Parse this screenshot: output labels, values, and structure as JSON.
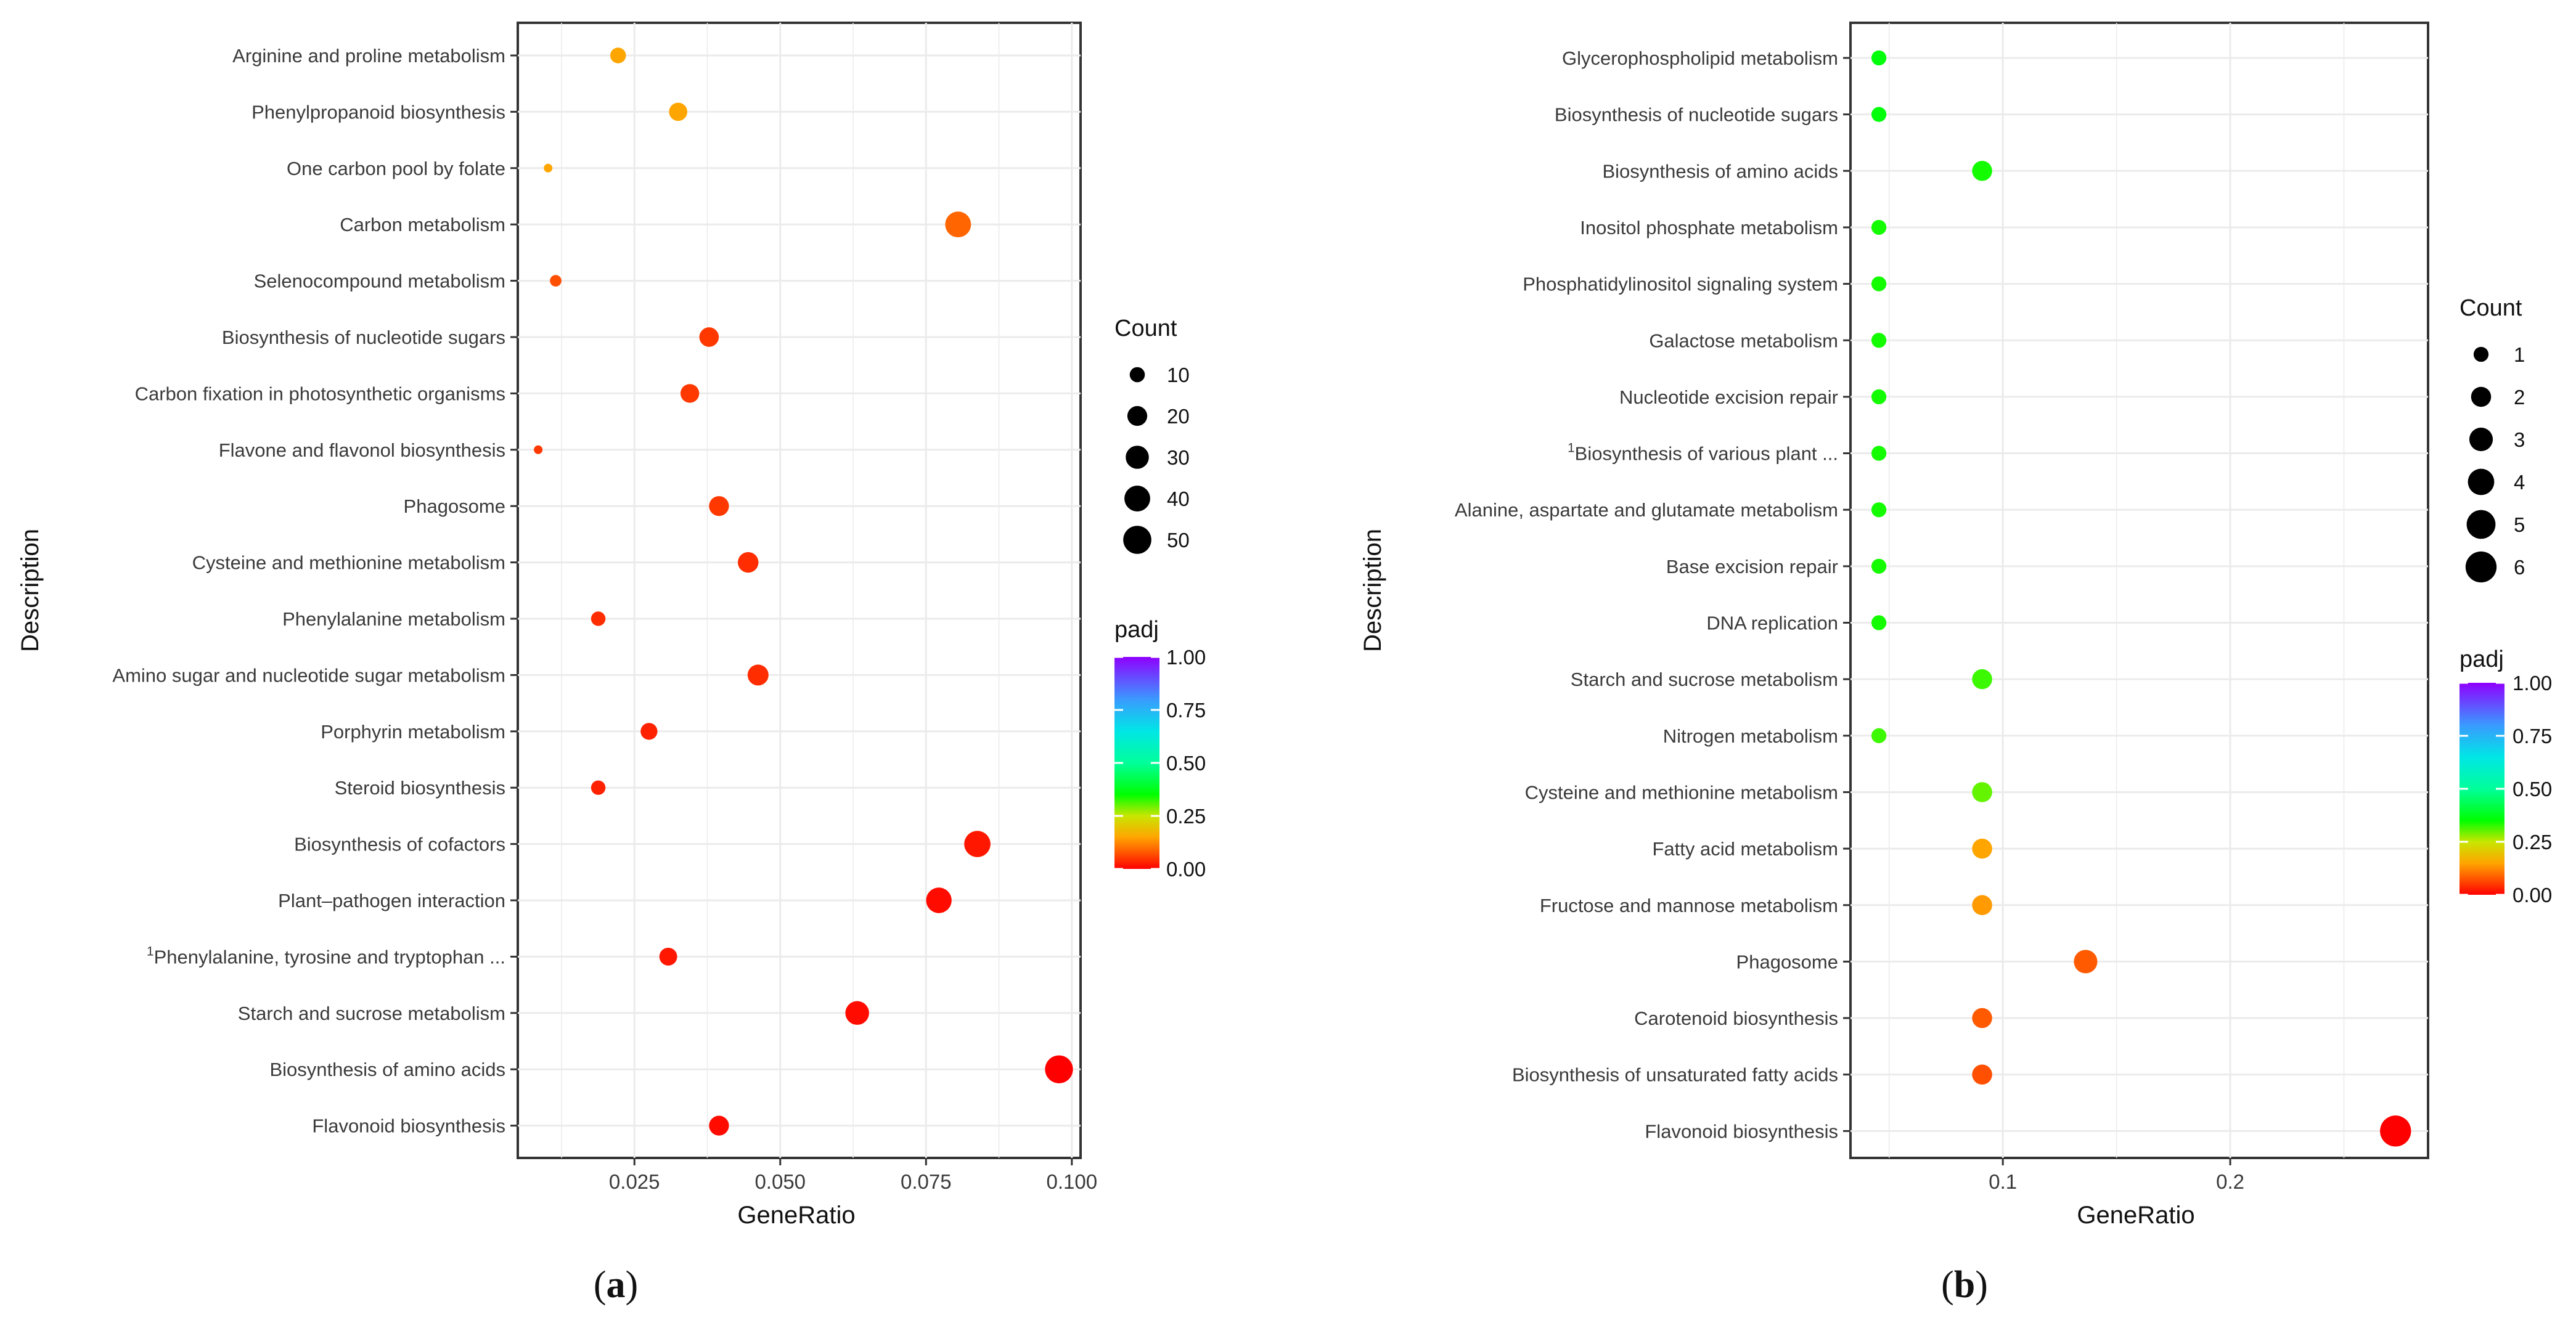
{
  "chart_data": [
    {
      "type": "scatter",
      "panel": "a",
      "caption_open": "(",
      "caption_letter": "a",
      "caption_close": ")",
      "xlabel": "GeneRatio",
      "ylabel": "Description",
      "xlim": [
        0.005,
        0.1015
      ],
      "x_ticks": [
        0.025,
        0.05,
        0.075,
        0.1
      ],
      "x_tick_labels": [
        "0.025",
        "0.050",
        "0.075",
        "0.100"
      ],
      "legend_placement": "right",
      "size_legend": {
        "title": "Count",
        "values": [
          10,
          20,
          30,
          40,
          50
        ],
        "labels": [
          "10",
          "20",
          "30",
          "40",
          "50"
        ],
        "size_max": 70
      },
      "color_legend": {
        "title": "padj",
        "ticks": [
          1.0,
          0.75,
          0.5,
          0.25,
          0.0
        ],
        "labels": [
          "1.00",
          "0.75",
          "0.50",
          "0.25",
          "0.00"
        ]
      },
      "points": [
        {
          "label": "Arginine and proline metabolism",
          "x": 0.0222,
          "count": 11,
          "padj": 0.15
        },
        {
          "label": "Phenylpropanoid biosynthesis",
          "x": 0.0325,
          "count": 16,
          "padj": 0.15
        },
        {
          "label": "One carbon pool by folate",
          "x": 0.0102,
          "count": 5,
          "padj": 0.15
        },
        {
          "label": "Carbon metabolism",
          "x": 0.0805,
          "count": 40,
          "padj": 0.09
        },
        {
          "label": "Selenocompound metabolism",
          "x": 0.0115,
          "count": 6,
          "padj": 0.07
        },
        {
          "label": "Biosynthesis of nucleotide sugars",
          "x": 0.0378,
          "count": 19,
          "padj": 0.05
        },
        {
          "label": "Carbon fixation in photosynthetic organisms",
          "x": 0.0345,
          "count": 17,
          "padj": 0.05
        },
        {
          "label": "Flavone and flavonol biosynthesis",
          "x": 0.0085,
          "count": 4,
          "padj": 0.05
        },
        {
          "label": "Phagosome",
          "x": 0.0395,
          "count": 20,
          "padj": 0.05
        },
        {
          "label": "Cysteine and methionine metabolism",
          "x": 0.0445,
          "count": 22,
          "padj": 0.04
        },
        {
          "label": "Phenylalanine metabolism",
          "x": 0.0188,
          "count": 9,
          "padj": 0.04
        },
        {
          "label": "Amino sugar and nucleotide sugar metabolism",
          "x": 0.0462,
          "count": 23,
          "padj": 0.04
        },
        {
          "label": "Porphyrin metabolism",
          "x": 0.0275,
          "count": 13,
          "padj": 0.03
        },
        {
          "label": "Steroid biosynthesis",
          "x": 0.0188,
          "count": 9,
          "padj": 0.03
        },
        {
          "label": "Biosynthesis of cofactors",
          "x": 0.0838,
          "count": 42,
          "padj": 0.02
        },
        {
          "label": "Plant–pathogen interaction",
          "x": 0.0772,
          "count": 39,
          "padj": 0.01
        },
        {
          "label": "Phenylalanine, tyrosine and tryptophan ...",
          "superscript": "1",
          "x": 0.0308,
          "count": 15,
          "padj": 0.02
        },
        {
          "label": "Starch and sucrose metabolism",
          "x": 0.0632,
          "count": 32,
          "padj": 0.01
        },
        {
          "label": "Biosynthesis of amino acids",
          "x": 0.0978,
          "count": 49,
          "padj": 0.0
        },
        {
          "label": "Flavonoid biosynthesis",
          "x": 0.0395,
          "count": 20,
          "padj": 0.01
        }
      ]
    },
    {
      "type": "scatter",
      "panel": "b",
      "caption_open": "(",
      "caption_letter": "b",
      "caption_close": ")",
      "xlabel": "GeneRatio",
      "ylabel": "Description",
      "xlim": [
        0.033,
        0.287
      ],
      "x_ticks": [
        0.1,
        0.2
      ],
      "x_tick_labels": [
        "0.1",
        "0.2"
      ],
      "legend_placement": "right",
      "size_legend": {
        "title": "Count",
        "values": [
          1,
          2,
          3,
          4,
          5,
          6
        ],
        "labels": [
          "1",
          "2",
          "3",
          "4",
          "5",
          "6"
        ],
        "size_max": 6.5
      },
      "color_legend": {
        "title": "padj",
        "ticks": [
          1.0,
          0.75,
          0.5,
          0.25,
          0.0
        ],
        "labels": [
          "1.00",
          "0.75",
          "0.50",
          "0.25",
          "0.00"
        ]
      },
      "points": [
        {
          "label": "Glycerophospholipid metabolism",
          "x": 0.0455,
          "count": 1,
          "padj": 0.36
        },
        {
          "label": "Biosynthesis of nucleotide sugars",
          "x": 0.0455,
          "count": 1,
          "padj": 0.36
        },
        {
          "label": "Biosynthesis of amino acids",
          "x": 0.0909,
          "count": 2,
          "padj": 0.34
        },
        {
          "label": "Inositol phosphate metabolism",
          "x": 0.0455,
          "count": 1,
          "padj": 0.34
        },
        {
          "label": "Phosphatidylinositol signaling system",
          "x": 0.0455,
          "count": 1,
          "padj": 0.34
        },
        {
          "label": "Galactose metabolism",
          "x": 0.0455,
          "count": 1,
          "padj": 0.34
        },
        {
          "label": "Nucleotide excision repair",
          "x": 0.0455,
          "count": 1,
          "padj": 0.34
        },
        {
          "label": "Biosynthesis of various plant ...",
          "superscript": "1",
          "x": 0.0455,
          "count": 1,
          "padj": 0.34
        },
        {
          "label": "Alanine, aspartate and glutamate metabolism",
          "x": 0.0455,
          "count": 1,
          "padj": 0.34
        },
        {
          "label": "Base excision repair",
          "x": 0.0455,
          "count": 1,
          "padj": 0.34
        },
        {
          "label": "DNA replication",
          "x": 0.0455,
          "count": 1,
          "padj": 0.34
        },
        {
          "label": "Starch and sucrose metabolism",
          "x": 0.0909,
          "count": 2,
          "padj": 0.32
        },
        {
          "label": "Nitrogen metabolism",
          "x": 0.0455,
          "count": 1,
          "padj": 0.32
        },
        {
          "label": "Cysteine and methionine metabolism",
          "x": 0.0909,
          "count": 2,
          "padj": 0.3
        },
        {
          "label": "Fatty acid metabolism",
          "x": 0.0909,
          "count": 2,
          "padj": 0.15
        },
        {
          "label": "Fructose and mannose metabolism",
          "x": 0.0909,
          "count": 2,
          "padj": 0.14
        },
        {
          "label": "Phagosome",
          "x": 0.1364,
          "count": 3,
          "padj": 0.08
        },
        {
          "label": "Carotenoid biosynthesis",
          "x": 0.0909,
          "count": 2,
          "padj": 0.08
        },
        {
          "label": "Biosynthesis of unsaturated fatty acids",
          "x": 0.0909,
          "count": 2,
          "padj": 0.07
        },
        {
          "label": "Flavonoid biosynthesis",
          "x": 0.2727,
          "count": 6,
          "padj": 0.0
        }
      ]
    }
  ]
}
